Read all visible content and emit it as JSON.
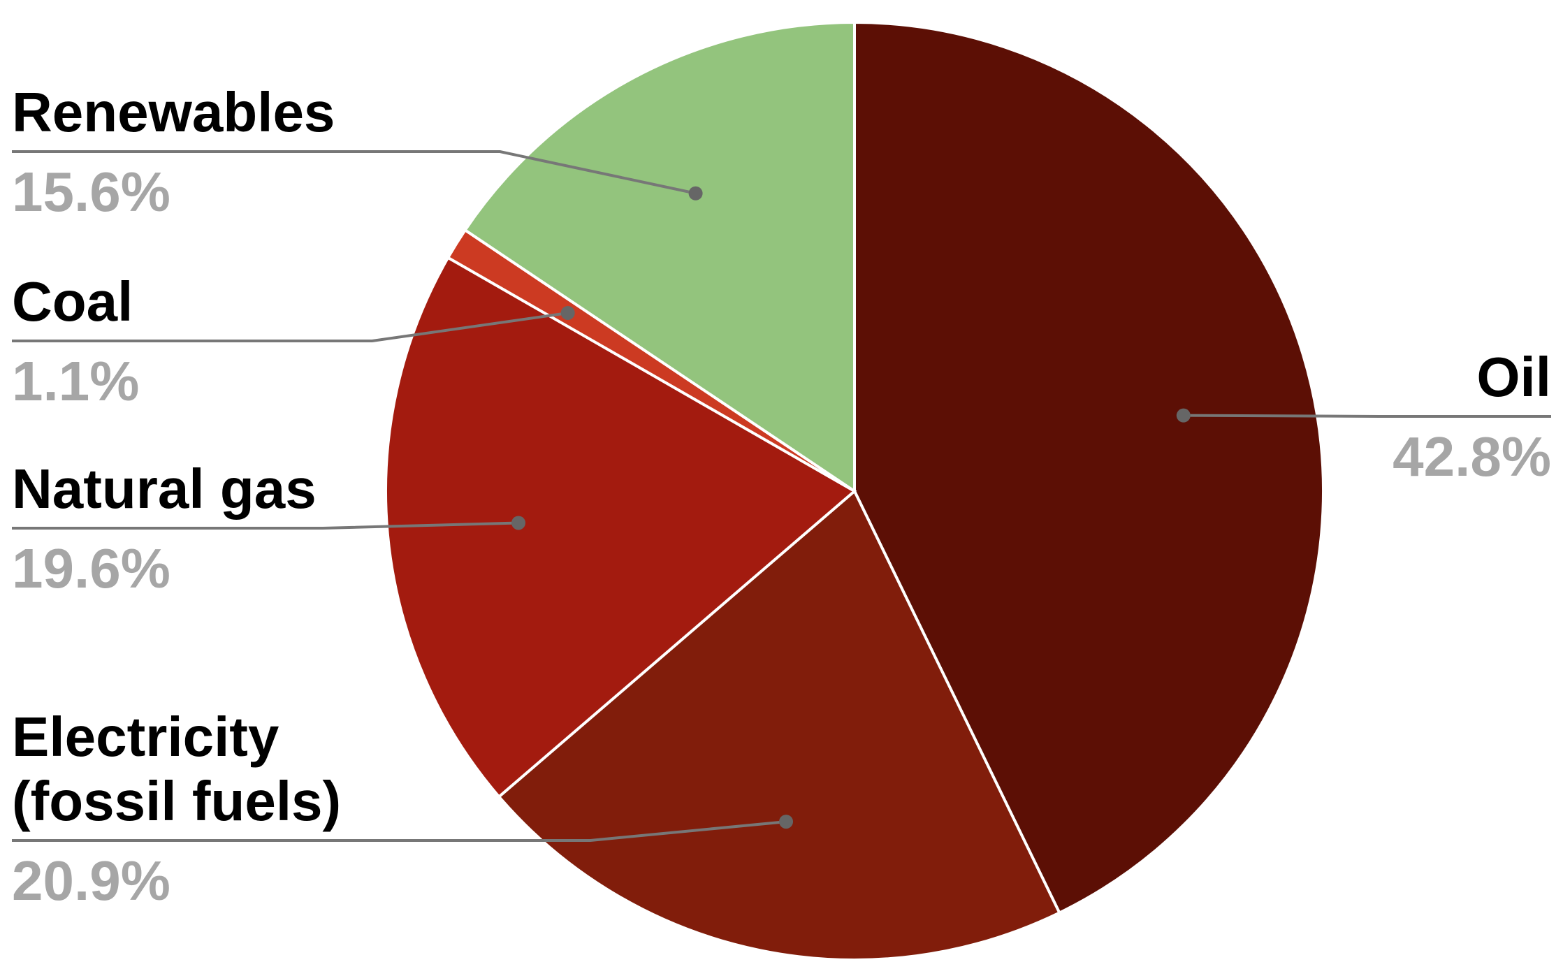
{
  "chart_data": {
    "type": "pie",
    "categories": [
      "Oil",
      "Electricity (fossil fuels)",
      "Natural gas",
      "Coal",
      "Renewables"
    ],
    "values": [
      42.8,
      20.9,
      19.6,
      1.1,
      15.6
    ],
    "value_labels": [
      "42.8%",
      "20.9%",
      "19.6%",
      "1.1%",
      "15.6%"
    ],
    "colors": [
      "#5c0f05",
      "#811d0b",
      "#a31b0f",
      "#cc3a22",
      "#93c47d"
    ]
  }
}
